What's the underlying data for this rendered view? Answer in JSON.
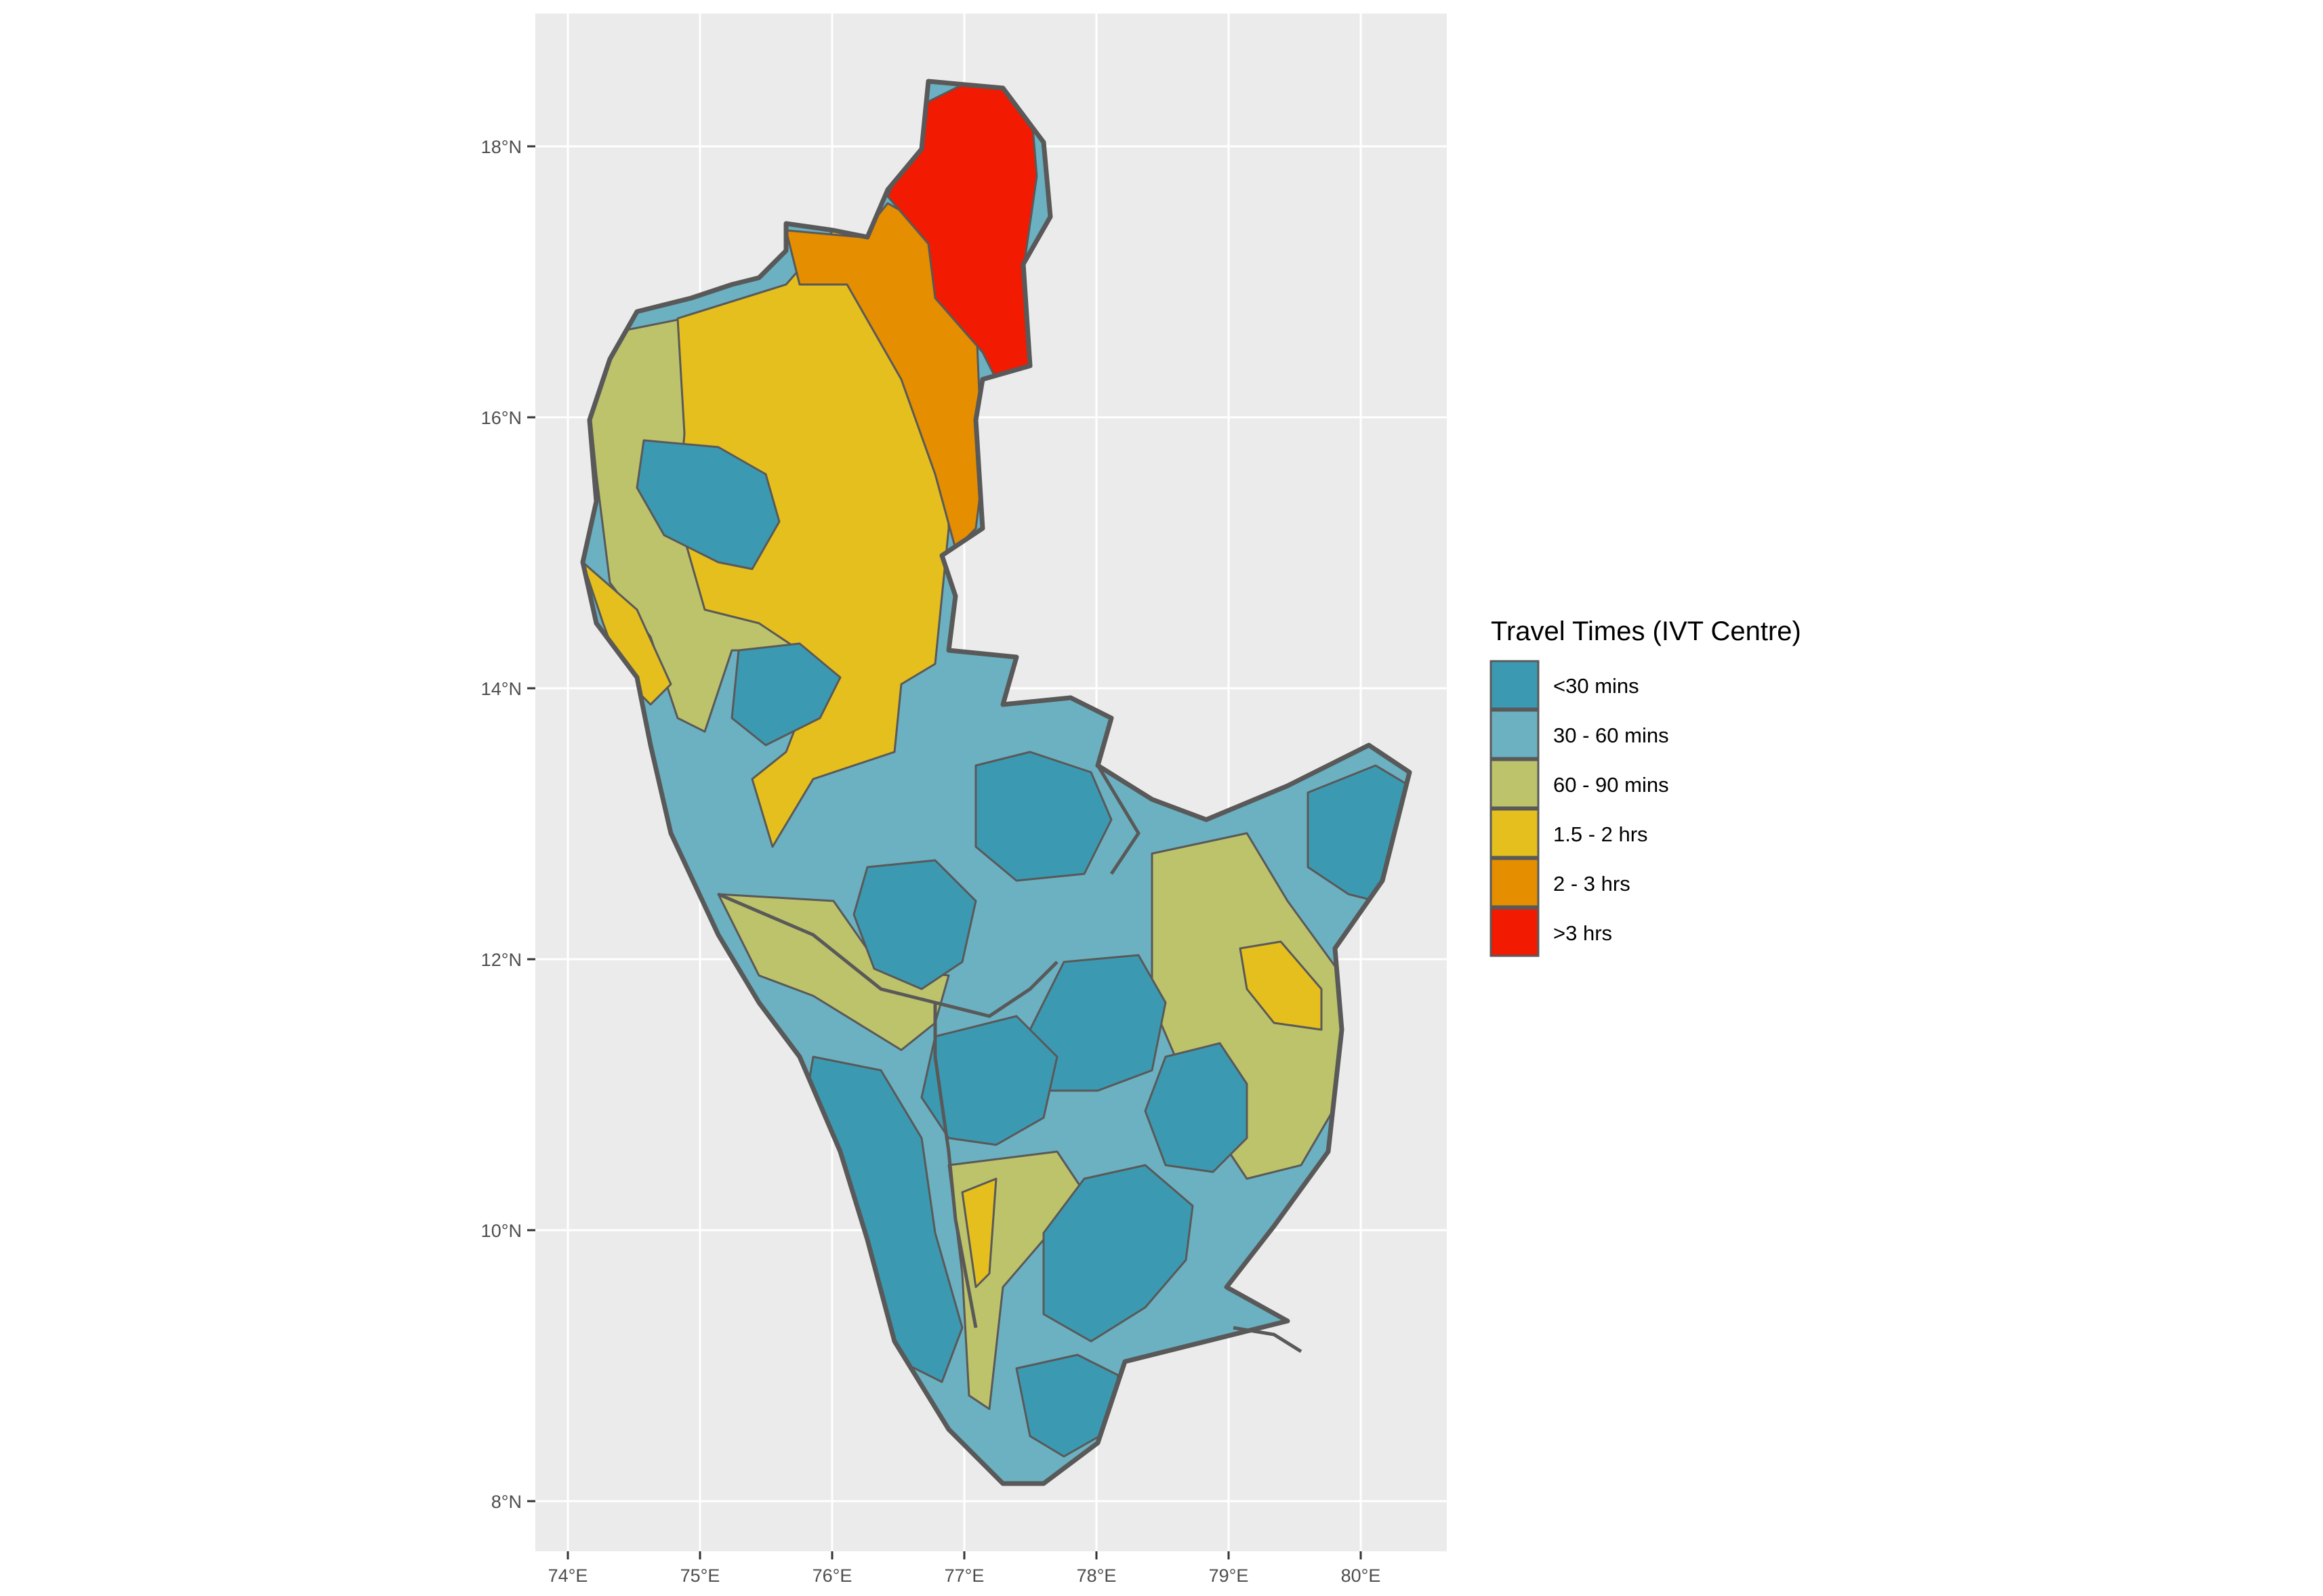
{
  "legend": {
    "title": "Travel Times  (IVT Centre)",
    "items": [
      {
        "label": "<30 mins",
        "color": "#3B9AB2"
      },
      {
        "label": "30 - 60 mins",
        "color": "#6BB1C1"
      },
      {
        "label": "60 - 90 mins",
        "color": "#BDC36A"
      },
      {
        "label": "1.5 - 2 hrs",
        "color": "#E5BF1D"
      },
      {
        "label": "2 - 3 hrs",
        "color": "#E48E00"
      },
      {
        "label": ">3 hrs",
        "color": "#F21A00"
      }
    ]
  },
  "axes": {
    "x_ticks": [
      "74°E",
      "75°E",
      "76°E",
      "77°E",
      "78°E",
      "79°E",
      "80°E"
    ],
    "y_ticks": [
      "8°N",
      "10°N",
      "12°N",
      "14°N",
      "16°N",
      "18°N"
    ]
  },
  "colors": {
    "panel_background": "#EBEBEB",
    "gridline": "#FFFFFF",
    "boundary": "#595959"
  }
}
